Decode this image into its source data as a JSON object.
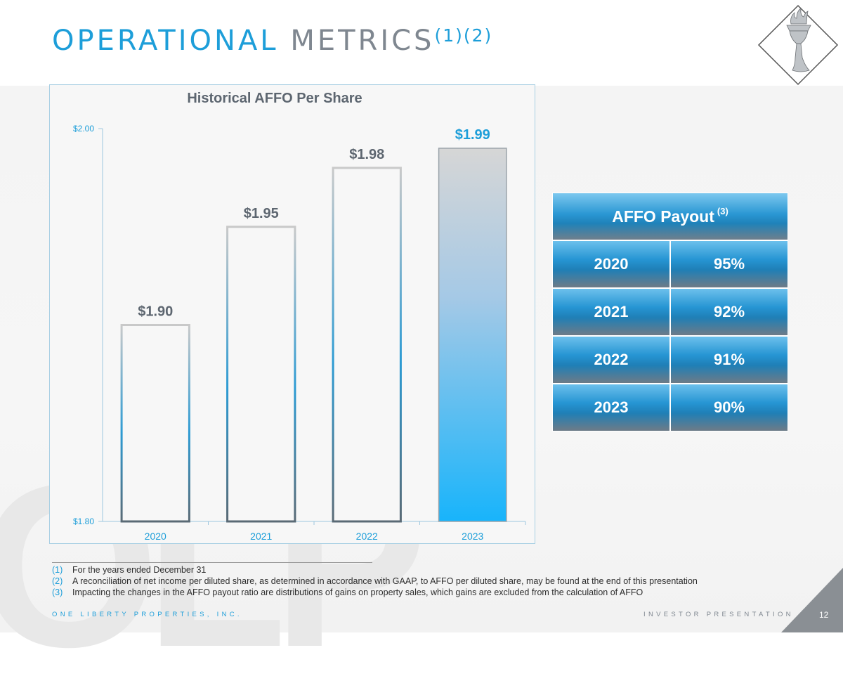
{
  "slide": {
    "title_colored": "OPERATIONAL",
    "title_gray": "METRICS",
    "title_sup": "(1)(2)",
    "logo_icon": "statue-of-liberty-torch-icon",
    "watermark": "OLP",
    "page_number": "12"
  },
  "chart_data": {
    "type": "bar",
    "title": "Historical AFFO Per Share",
    "categories": [
      "2020",
      "2021",
      "2022",
      "2023"
    ],
    "values": [
      1.9,
      1.95,
      1.98,
      1.99
    ],
    "value_labels": [
      "$1.90",
      "$1.95",
      "$1.98",
      "$1.99"
    ],
    "ylim": [
      1.8,
      2.0
    ],
    "ytick_labels": [
      "$1.80",
      "$2.00"
    ],
    "xlabel": "",
    "ylabel": "",
    "highlight_index": 3
  },
  "payout_table": {
    "header": "AFFO Payout",
    "header_sup": "(3)",
    "rows": [
      {
        "year": "2020",
        "pct": "95%"
      },
      {
        "year": "2021",
        "pct": "92%"
      },
      {
        "year": "2022",
        "pct": "91%"
      },
      {
        "year": "2023",
        "pct": "90%"
      }
    ]
  },
  "footnotes": [
    {
      "num": "(1)",
      "text": "For the years ended December 31"
    },
    {
      "num": "(2)",
      "text": "A reconciliation of net income per diluted share, as determined in accordance with GAAP, to AFFO per diluted share, may be found at the end of this presentation"
    },
    {
      "num": "(3)",
      "text": "Impacting the changes in the AFFO payout ratio are distributions of gains on property sales, which gains are excluded from the calculation of AFFO"
    }
  ],
  "footer": {
    "left": "ONE LIBERTY PROPERTIES, INC.",
    "right": "INVESTOR PRESENTATION"
  },
  "colors": {
    "accent": "#1d9ed9",
    "gray": "#7f8790"
  }
}
